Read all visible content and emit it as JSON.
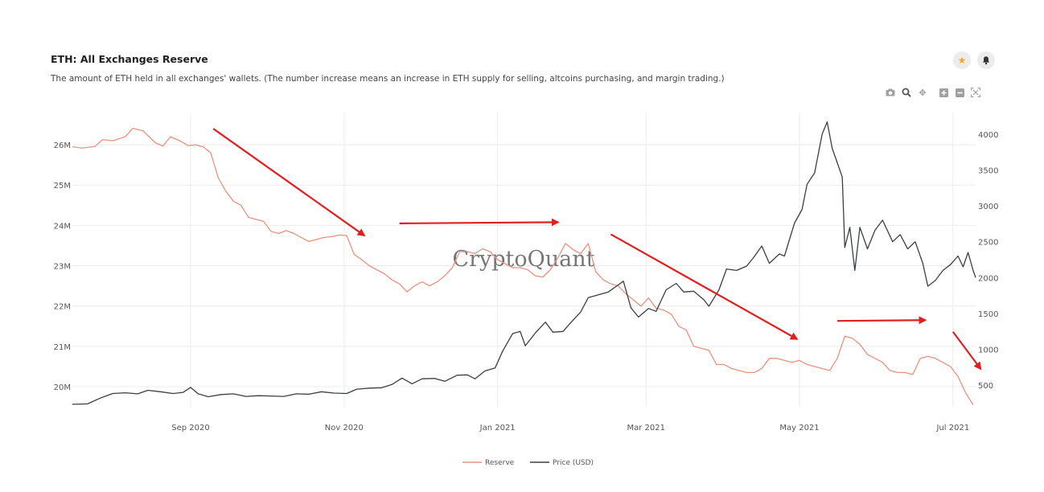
{
  "header": {
    "title": "ETH: All Exchanges Reserve",
    "subtitle": "The amount of ETH held in all exchanges' wallets. (The number increase means an increase in ETH supply for selling, altcoins purchasing, and margin trading.)"
  },
  "icons": {
    "favorite": "star-icon",
    "alert": "bell-icon",
    "toolbar": [
      "camera-icon",
      "zoom-icon",
      "pan-icon",
      "zoom-in-icon",
      "zoom-out-icon",
      "autoscale-icon"
    ]
  },
  "colors": {
    "reserve": "#e8927c",
    "price": "#3b3f44",
    "arrows": "#e02020",
    "star": "#f5a623"
  },
  "watermark": "CryptoQuant",
  "chart_data": {
    "type": "line",
    "x_axis": {
      "type": "date",
      "range": [
        "2020-07-16",
        "2021-07-10"
      ],
      "ticks": [
        {
          "date": "2020-09-01",
          "label": "Sep 2020"
        },
        {
          "date": "2020-11-01",
          "label": "Nov 2020"
        },
        {
          "date": "2021-01-01",
          "label": "Jan 2021"
        },
        {
          "date": "2021-03-01",
          "label": "Mar 2021"
        },
        {
          "date": "2021-05-01",
          "label": "May 2021"
        },
        {
          "date": "2021-07-01",
          "label": "Jul 2021"
        }
      ]
    },
    "y_left": {
      "range": [
        19500000,
        26800000
      ],
      "ticks": [
        {
          "value": 20000000,
          "label": "20M"
        },
        {
          "value": 21000000,
          "label": "21M"
        },
        {
          "value": 22000000,
          "label": "22M"
        },
        {
          "value": 23000000,
          "label": "23M"
        },
        {
          "value": 24000000,
          "label": "24M"
        },
        {
          "value": 25000000,
          "label": "25M"
        },
        {
          "value": 26000000,
          "label": "26M"
        }
      ]
    },
    "y_right": {
      "range": [
        200,
        4300
      ],
      "ticks": [
        {
          "value": 500,
          "label": "500"
        },
        {
          "value": 1000,
          "label": "1000"
        },
        {
          "value": 1500,
          "label": "1500"
        },
        {
          "value": 2000,
          "label": "2000"
        },
        {
          "value": 2500,
          "label": "2500"
        },
        {
          "value": 3000,
          "label": "3000"
        },
        {
          "value": 3500,
          "label": "3500"
        },
        {
          "value": 4000,
          "label": "4000"
        }
      ]
    },
    "grid": true,
    "legend_position": "bottom",
    "series": [
      {
        "name": "Reserve",
        "axis": "left",
        "points": [
          [
            "2020-07-16",
            25950000
          ],
          [
            "2020-07-20",
            25920000
          ],
          [
            "2020-07-25",
            25960000
          ],
          [
            "2020-07-28",
            26130000
          ],
          [
            "2020-08-01",
            26100000
          ],
          [
            "2020-08-06",
            26200000
          ],
          [
            "2020-08-09",
            26410000
          ],
          [
            "2020-08-13",
            26350000
          ],
          [
            "2020-08-18",
            26050000
          ],
          [
            "2020-08-21",
            25970000
          ],
          [
            "2020-08-24",
            26200000
          ],
          [
            "2020-08-28",
            26090000
          ],
          [
            "2020-08-31",
            25980000
          ],
          [
            "2020-09-03",
            26000000
          ],
          [
            "2020-09-06",
            25950000
          ],
          [
            "2020-09-09",
            25800000
          ],
          [
            "2020-09-12",
            25180000
          ],
          [
            "2020-09-15",
            24850000
          ],
          [
            "2020-09-18",
            24600000
          ],
          [
            "2020-09-21",
            24500000
          ],
          [
            "2020-09-24",
            24200000
          ],
          [
            "2020-09-27",
            24150000
          ],
          [
            "2020-09-30",
            24100000
          ],
          [
            "2020-10-03",
            23850000
          ],
          [
            "2020-10-06",
            23800000
          ],
          [
            "2020-10-09",
            23870000
          ],
          [
            "2020-10-12",
            23800000
          ],
          [
            "2020-10-15",
            23700000
          ],
          [
            "2020-10-18",
            23600000
          ],
          [
            "2020-10-21",
            23650000
          ],
          [
            "2020-10-24",
            23700000
          ],
          [
            "2020-10-27",
            23720000
          ],
          [
            "2020-10-30",
            23760000
          ],
          [
            "2020-11-02",
            23750000
          ],
          [
            "2020-11-05",
            23280000
          ],
          [
            "2020-11-08",
            23150000
          ],
          [
            "2020-11-11",
            23000000
          ],
          [
            "2020-11-14",
            22900000
          ],
          [
            "2020-11-17",
            22800000
          ],
          [
            "2020-11-20",
            22650000
          ],
          [
            "2020-11-23",
            22550000
          ],
          [
            "2020-11-26",
            22350000
          ],
          [
            "2020-11-29",
            22500000
          ],
          [
            "2020-12-02",
            22600000
          ],
          [
            "2020-12-05",
            22500000
          ],
          [
            "2020-12-08",
            22600000
          ],
          [
            "2020-12-11",
            22750000
          ],
          [
            "2020-12-14",
            22950000
          ],
          [
            "2020-12-17",
            23350000
          ],
          [
            "2020-12-20",
            23350000
          ],
          [
            "2020-12-23",
            23300000
          ],
          [
            "2020-12-26",
            23420000
          ],
          [
            "2020-12-29",
            23350000
          ],
          [
            "2021-01-01",
            23150000
          ],
          [
            "2021-01-04",
            23050000
          ],
          [
            "2021-01-07",
            22950000
          ],
          [
            "2021-01-10",
            22950000
          ],
          [
            "2021-01-13",
            22900000
          ],
          [
            "2021-01-16",
            22750000
          ],
          [
            "2021-01-19",
            22720000
          ],
          [
            "2021-01-22",
            22900000
          ],
          [
            "2021-01-25",
            23200000
          ],
          [
            "2021-01-28",
            23550000
          ],
          [
            "2021-01-31",
            23400000
          ],
          [
            "2021-02-03",
            23300000
          ],
          [
            "2021-02-06",
            23550000
          ],
          [
            "2021-02-09",
            22850000
          ],
          [
            "2021-02-12",
            22650000
          ],
          [
            "2021-02-15",
            22550000
          ],
          [
            "2021-02-18",
            22500000
          ],
          [
            "2021-02-21",
            22300000
          ],
          [
            "2021-02-24",
            22150000
          ],
          [
            "2021-02-27",
            22000000
          ],
          [
            "2021-03-02",
            22200000
          ],
          [
            "2021-03-05",
            21950000
          ],
          [
            "2021-03-08",
            21900000
          ],
          [
            "2021-03-11",
            21800000
          ],
          [
            "2021-03-14",
            21500000
          ],
          [
            "2021-03-17",
            21400000
          ],
          [
            "2021-03-20",
            21000000
          ],
          [
            "2021-03-23",
            20950000
          ],
          [
            "2021-03-26",
            20900000
          ],
          [
            "2021-03-29",
            20550000
          ],
          [
            "2021-04-01",
            20550000
          ],
          [
            "2021-04-04",
            20450000
          ],
          [
            "2021-04-07",
            20400000
          ],
          [
            "2021-04-10",
            20350000
          ],
          [
            "2021-04-13",
            20350000
          ],
          [
            "2021-04-16",
            20450000
          ],
          [
            "2021-04-19",
            20700000
          ],
          [
            "2021-04-22",
            20700000
          ],
          [
            "2021-04-25",
            20650000
          ],
          [
            "2021-04-28",
            20600000
          ],
          [
            "2021-05-01",
            20650000
          ],
          [
            "2021-05-04",
            20550000
          ],
          [
            "2021-05-07",
            20500000
          ],
          [
            "2021-05-10",
            20450000
          ],
          [
            "2021-05-13",
            20400000
          ],
          [
            "2021-05-16",
            20700000
          ],
          [
            "2021-05-19",
            21250000
          ],
          [
            "2021-05-22",
            21200000
          ],
          [
            "2021-05-25",
            21050000
          ],
          [
            "2021-05-28",
            20800000
          ],
          [
            "2021-05-31",
            20700000
          ],
          [
            "2021-06-03",
            20600000
          ],
          [
            "2021-06-06",
            20400000
          ],
          [
            "2021-06-09",
            20350000
          ],
          [
            "2021-06-12",
            20350000
          ],
          [
            "2021-06-15",
            20300000
          ],
          [
            "2021-06-18",
            20700000
          ],
          [
            "2021-06-21",
            20750000
          ],
          [
            "2021-06-24",
            20700000
          ],
          [
            "2021-06-27",
            20600000
          ],
          [
            "2021-06-30",
            20500000
          ],
          [
            "2021-07-03",
            20250000
          ],
          [
            "2021-07-06",
            19850000
          ],
          [
            "2021-07-09",
            19550000
          ]
        ]
      },
      {
        "name": "Price (USD)",
        "axis": "right",
        "points": [
          [
            "2020-07-16",
            235
          ],
          [
            "2020-07-22",
            240
          ],
          [
            "2020-07-27",
            320
          ],
          [
            "2020-08-01",
            385
          ],
          [
            "2020-08-06",
            395
          ],
          [
            "2020-08-11",
            380
          ],
          [
            "2020-08-15",
            430
          ],
          [
            "2020-08-20",
            410
          ],
          [
            "2020-08-25",
            385
          ],
          [
            "2020-08-29",
            400
          ],
          [
            "2020-09-01",
            470
          ],
          [
            "2020-09-04",
            380
          ],
          [
            "2020-09-08",
            340
          ],
          [
            "2020-09-13",
            370
          ],
          [
            "2020-09-18",
            380
          ],
          [
            "2020-09-23",
            345
          ],
          [
            "2020-09-28",
            355
          ],
          [
            "2020-10-03",
            350
          ],
          [
            "2020-10-08",
            345
          ],
          [
            "2020-10-13",
            380
          ],
          [
            "2020-10-18",
            375
          ],
          [
            "2020-10-23",
            410
          ],
          [
            "2020-10-28",
            390
          ],
          [
            "2020-11-02",
            385
          ],
          [
            "2020-11-06",
            445
          ],
          [
            "2020-11-11",
            460
          ],
          [
            "2020-11-16",
            465
          ],
          [
            "2020-11-20",
            510
          ],
          [
            "2020-11-24",
            600
          ],
          [
            "2020-11-28",
            520
          ],
          [
            "2020-12-02",
            590
          ],
          [
            "2020-12-07",
            595
          ],
          [
            "2020-12-11",
            555
          ],
          [
            "2020-12-16",
            640
          ],
          [
            "2020-12-20",
            645
          ],
          [
            "2020-12-23",
            590
          ],
          [
            "2020-12-27",
            700
          ],
          [
            "2020-12-31",
            740
          ],
          [
            "2021-01-03",
            975
          ],
          [
            "2021-01-07",
            1220
          ],
          [
            "2021-01-10",
            1250
          ],
          [
            "2021-01-12",
            1050
          ],
          [
            "2021-01-16",
            1230
          ],
          [
            "2021-01-20",
            1380
          ],
          [
            "2021-01-23",
            1240
          ],
          [
            "2021-01-27",
            1250
          ],
          [
            "2021-01-30",
            1370
          ],
          [
            "2021-02-03",
            1520
          ],
          [
            "2021-02-06",
            1720
          ],
          [
            "2021-02-10",
            1760
          ],
          [
            "2021-02-14",
            1800
          ],
          [
            "2021-02-20",
            1950
          ],
          [
            "2021-02-23",
            1580
          ],
          [
            "2021-02-26",
            1450
          ],
          [
            "2021-03-02",
            1570
          ],
          [
            "2021-03-05",
            1530
          ],
          [
            "2021-03-09",
            1830
          ],
          [
            "2021-03-13",
            1920
          ],
          [
            "2021-03-16",
            1800
          ],
          [
            "2021-03-20",
            1810
          ],
          [
            "2021-03-24",
            1690
          ],
          [
            "2021-03-26",
            1600
          ],
          [
            "2021-03-30",
            1830
          ],
          [
            "2021-04-02",
            2120
          ],
          [
            "2021-04-06",
            2100
          ],
          [
            "2021-04-10",
            2160
          ],
          [
            "2021-04-13",
            2290
          ],
          [
            "2021-04-16",
            2440
          ],
          [
            "2021-04-19",
            2200
          ],
          [
            "2021-04-23",
            2330
          ],
          [
            "2021-04-25",
            2300
          ],
          [
            "2021-04-29",
            2760
          ],
          [
            "2021-05-02",
            2950
          ],
          [
            "2021-05-04",
            3300
          ],
          [
            "2021-05-07",
            3460
          ],
          [
            "2021-05-10",
            4000
          ],
          [
            "2021-05-12",
            4170
          ],
          [
            "2021-05-14",
            3800
          ],
          [
            "2021-05-16",
            3600
          ],
          [
            "2021-05-18",
            3400
          ],
          [
            "2021-05-19",
            2420
          ],
          [
            "2021-05-21",
            2700
          ],
          [
            "2021-05-23",
            2100
          ],
          [
            "2021-05-25",
            2700
          ],
          [
            "2021-05-28",
            2400
          ],
          [
            "2021-05-31",
            2660
          ],
          [
            "2021-06-03",
            2800
          ],
          [
            "2021-06-07",
            2500
          ],
          [
            "2021-06-10",
            2600
          ],
          [
            "2021-06-13",
            2400
          ],
          [
            "2021-06-16",
            2500
          ],
          [
            "2021-06-19",
            2200
          ],
          [
            "2021-06-21",
            1880
          ],
          [
            "2021-06-24",
            1960
          ],
          [
            "2021-06-27",
            2100
          ],
          [
            "2021-06-30",
            2180
          ],
          [
            "2021-07-03",
            2300
          ],
          [
            "2021-07-05",
            2150
          ],
          [
            "2021-07-07",
            2350
          ],
          [
            "2021-07-09",
            2100
          ],
          [
            "2021-07-10",
            2000
          ]
        ]
      }
    ],
    "annotations": [
      {
        "type": "arrow",
        "from": [
          "2020-09-10",
          26400000
        ],
        "to": [
          "2020-11-09",
          23750000
        ]
      },
      {
        "type": "arrow",
        "from": [
          "2020-11-23",
          24050000
        ],
        "to": [
          "2021-01-25",
          24080000
        ]
      },
      {
        "type": "arrow",
        "from": [
          "2021-02-15",
          23780000
        ],
        "to": [
          "2021-04-30",
          21180000
        ]
      },
      {
        "type": "arrow",
        "from": [
          "2021-05-16",
          21630000
        ],
        "to": [
          "2021-06-20",
          21650000
        ]
      },
      {
        "type": "arrow",
        "from": [
          "2021-07-01",
          21360000
        ],
        "to": [
          "2021-07-12",
          20440000
        ]
      }
    ]
  },
  "legend": [
    {
      "label": "Reserve",
      "color": "#e8927c"
    },
    {
      "label": "Price (USD)",
      "color": "#3b3f44"
    }
  ]
}
